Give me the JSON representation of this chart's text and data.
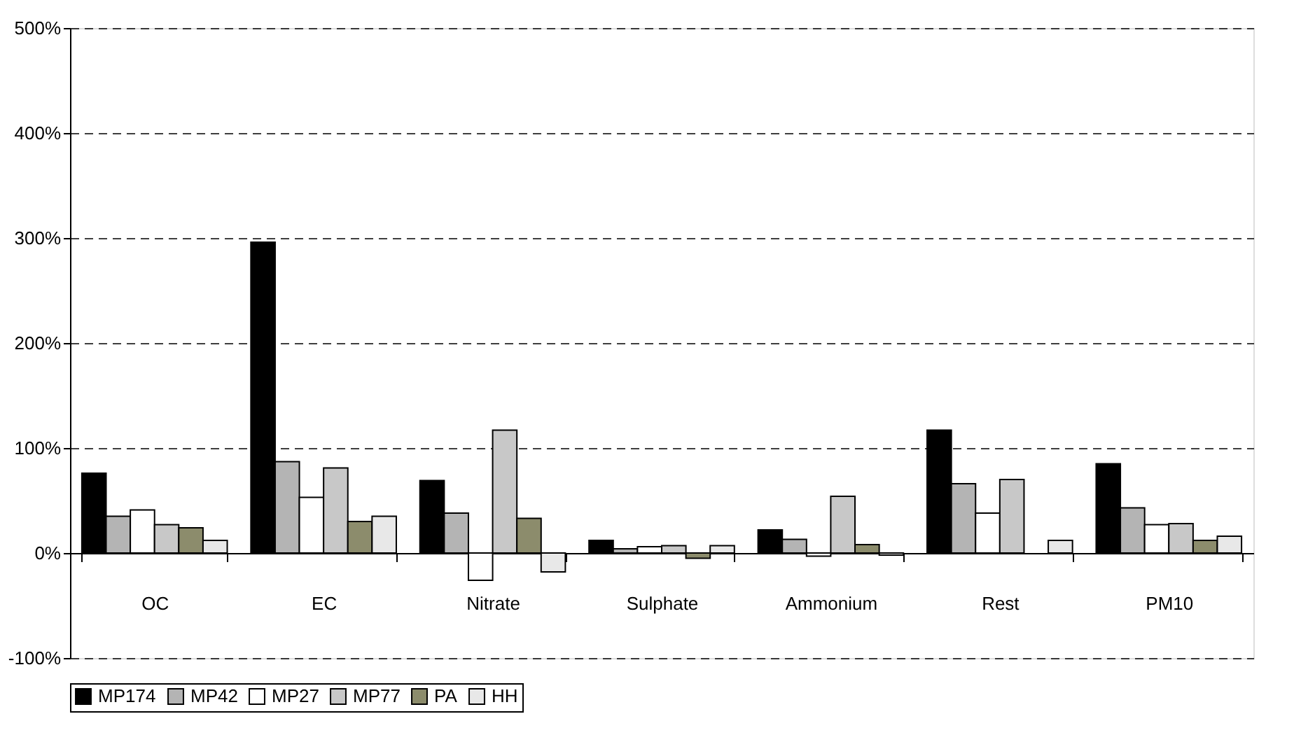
{
  "chart_data": {
    "type": "bar",
    "categories": [
      "OC",
      "EC",
      "Nitrate",
      "Sulphate",
      "Ammonium",
      "Rest",
      "PM10"
    ],
    "series": [
      {
        "name": "MP174",
        "color": "#000000",
        "values": [
          76,
          296,
          69,
          12,
          22,
          117,
          85
        ]
      },
      {
        "name": "MP42",
        "color": "#b4b4b4",
        "values": [
          35,
          87,
          38,
          4,
          13,
          66,
          43
        ]
      },
      {
        "name": "MP27",
        "color": "#ffffff",
        "values": [
          41,
          53,
          -26,
          6,
          -3,
          38,
          27
        ]
      },
      {
        "name": "MP77",
        "color": "#c8c8c8",
        "values": [
          27,
          81,
          117,
          7,
          54,
          70,
          28
        ]
      },
      {
        "name": "PA",
        "color": "#8c8c6c",
        "values": [
          24,
          30,
          33,
          -5,
          8,
          null,
          12
        ]
      },
      {
        "name": "HH",
        "color": "#e8e8e8",
        "values": [
          12,
          35,
          -18,
          7,
          -2,
          12,
          16
        ]
      }
    ],
    "ylim": [
      -100,
      500
    ],
    "yticks": [
      {
        "value": -100,
        "label": "-100%"
      },
      {
        "value": 0,
        "label": "0%"
      },
      {
        "value": 100,
        "label": "100%"
      },
      {
        "value": 200,
        "label": "200%"
      },
      {
        "value": 300,
        "label": "300%"
      },
      {
        "value": 400,
        "label": "400%"
      },
      {
        "value": 500,
        "label": "500%"
      }
    ],
    "grid": "y",
    "legend": "bottom"
  }
}
